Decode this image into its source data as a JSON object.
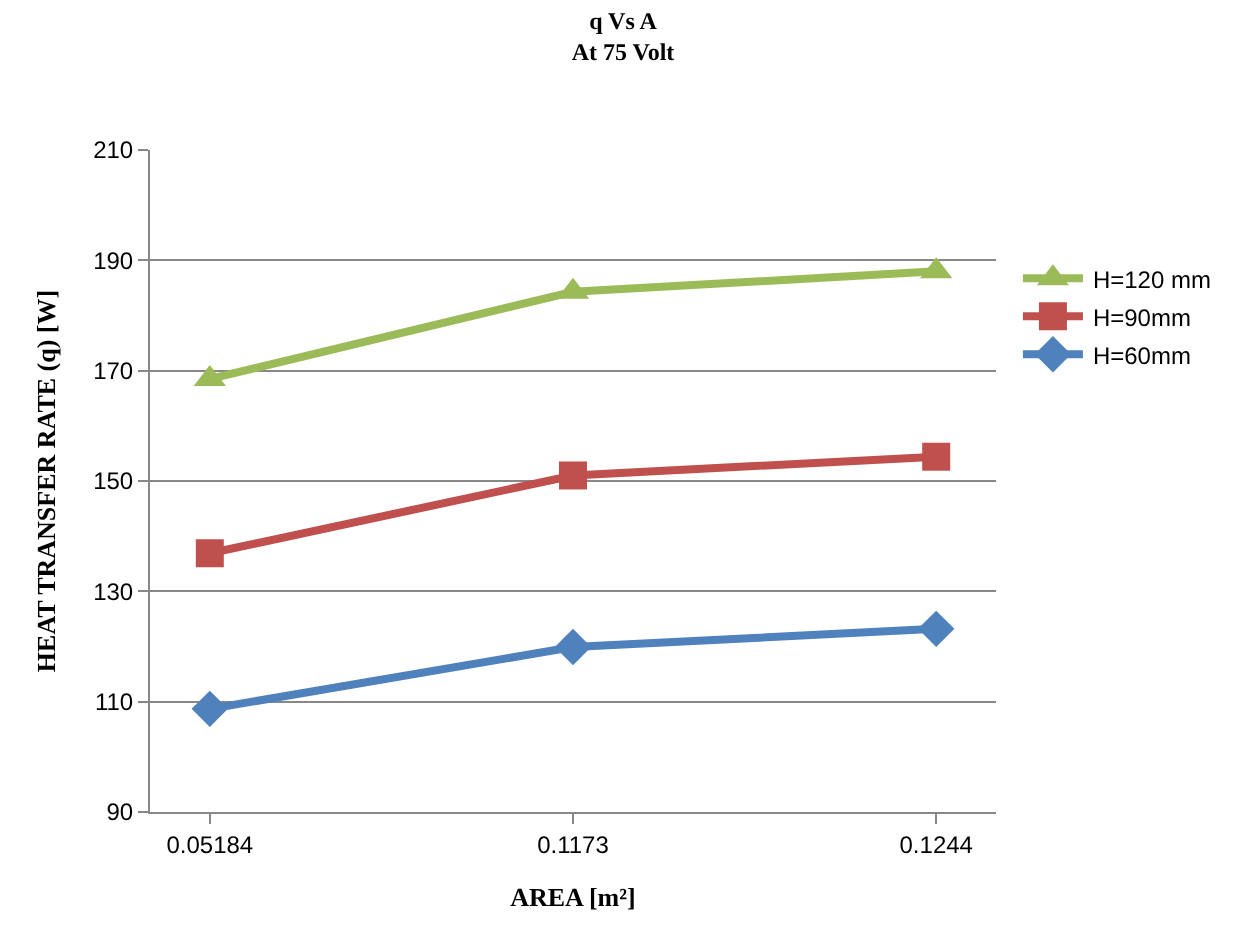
{
  "chart_data": {
    "type": "line",
    "title": "q Vs A",
    "subtitle": "At 75 Volt",
    "xlabel": "AREA [m²]",
    "ylabel": "HEAT TRANSFER RATE (q) [W]",
    "categories": [
      "0.05184",
      "0.1173",
      "0.1244"
    ],
    "series": [
      {
        "name": "H=120 mm",
        "color": "#9bbb59",
        "marker": "triangle",
        "values": [
          168.5,
          184.3,
          188.0
        ]
      },
      {
        "name": "H=90mm",
        "color": "#c0504d",
        "marker": "square",
        "values": [
          136.9,
          151.0,
          154.4
        ]
      },
      {
        "name": "H=60mm",
        "color": "#4f81bd",
        "marker": "diamond",
        "values": [
          108.7,
          119.9,
          123.2
        ]
      }
    ],
    "ylim": [
      90,
      210
    ],
    "yticks": [
      90,
      110,
      130,
      150,
      170,
      190,
      210
    ],
    "grid": "y",
    "legend": "right",
    "line_style": "solid"
  }
}
